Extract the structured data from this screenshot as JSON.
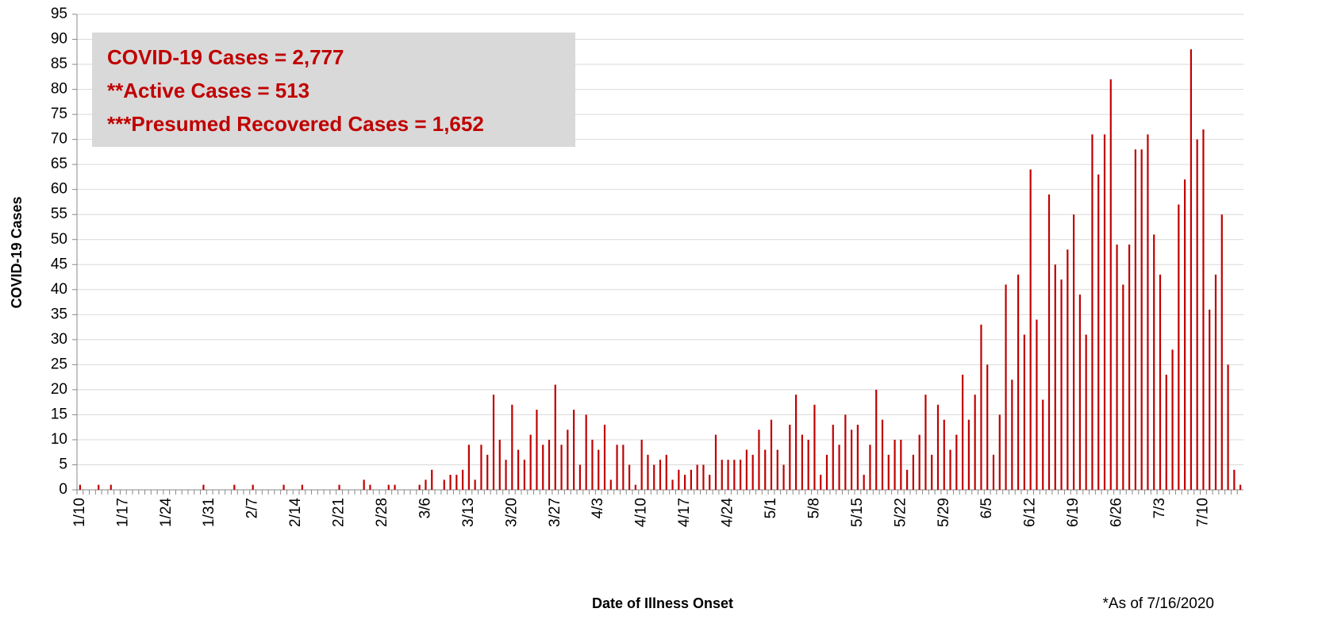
{
  "chart_data": {
    "type": "bar",
    "x_label": "Date of Illness Onset",
    "y_label": "COVID-19 Cases",
    "annotations": [
      "COVID-19 Cases = 2,777",
      "**Active Cases = 513",
      "***Presumed Recovered Cases = 1,652"
    ],
    "footnote": "*As of 7/16/2020",
    "color": "#c00000",
    "grid": true,
    "ylim": [
      0,
      95
    ],
    "yticks": [
      0,
      5,
      10,
      15,
      20,
      25,
      30,
      35,
      40,
      45,
      50,
      55,
      60,
      65,
      70,
      75,
      80,
      85,
      90,
      95
    ],
    "categories": [
      "1/10",
      null,
      null,
      null,
      null,
      null,
      null,
      "1/17",
      null,
      null,
      null,
      null,
      null,
      null,
      "1/24",
      null,
      null,
      null,
      null,
      null,
      null,
      "1/31",
      null,
      null,
      null,
      null,
      null,
      null,
      "2/7",
      null,
      null,
      null,
      null,
      null,
      null,
      "2/14",
      null,
      null,
      null,
      null,
      null,
      null,
      "2/21",
      null,
      null,
      null,
      null,
      null,
      null,
      "2/28",
      null,
      null,
      null,
      null,
      null,
      null,
      "3/6",
      null,
      null,
      null,
      null,
      null,
      null,
      "3/13",
      null,
      null,
      null,
      null,
      null,
      null,
      "3/20",
      null,
      null,
      null,
      null,
      null,
      null,
      "3/27",
      null,
      null,
      null,
      null,
      null,
      null,
      "4/3",
      null,
      null,
      null,
      null,
      null,
      null,
      "4/10",
      null,
      null,
      null,
      null,
      null,
      null,
      "4/17",
      null,
      null,
      null,
      null,
      null,
      null,
      "4/24",
      null,
      null,
      null,
      null,
      null,
      null,
      "5/1",
      null,
      null,
      null,
      null,
      null,
      null,
      "5/8",
      null,
      null,
      null,
      null,
      null,
      null,
      "5/15",
      null,
      null,
      null,
      null,
      null,
      null,
      "5/22",
      null,
      null,
      null,
      null,
      null,
      null,
      "5/29",
      null,
      null,
      null,
      null,
      null,
      null,
      "6/5",
      null,
      null,
      null,
      null,
      null,
      null,
      "6/12",
      null,
      null,
      null,
      null,
      null,
      null,
      "6/19",
      null,
      null,
      null,
      null,
      null,
      null,
      "6/26",
      null,
      null,
      null,
      null,
      null,
      null,
      "7/3",
      null,
      null,
      null,
      null,
      null,
      null,
      "7/10",
      null,
      null,
      null,
      null,
      null,
      null
    ],
    "values": [
      1,
      0,
      0,
      1,
      0,
      1,
      0,
      0,
      0,
      0,
      0,
      0,
      0,
      0,
      0,
      0,
      0,
      0,
      0,
      0,
      1,
      0,
      0,
      0,
      0,
      1,
      0,
      0,
      1,
      0,
      0,
      0,
      0,
      1,
      0,
      0,
      1,
      0,
      0,
      0,
      0,
      0,
      1,
      0,
      0,
      0,
      2,
      1,
      0,
      0,
      1,
      1,
      0,
      0,
      0,
      1,
      2,
      4,
      0,
      2,
      3,
      3,
      4,
      9,
      2,
      9,
      7,
      19,
      10,
      6,
      17,
      8,
      6,
      11,
      16,
      9,
      10,
      21,
      9,
      12,
      16,
      5,
      15,
      10,
      8,
      13,
      2,
      9,
      9,
      5,
      1,
      10,
      7,
      5,
      6,
      7,
      2,
      4,
      3,
      4,
      5,
      5,
      3,
      11,
      6,
      6,
      6,
      6,
      8,
      7,
      12,
      8,
      14,
      8,
      5,
      13,
      19,
      11,
      10,
      17,
      3,
      7,
      13,
      9,
      15,
      12,
      13,
      3,
      9,
      20,
      14,
      7,
      10,
      10,
      4,
      7,
      11,
      19,
      7,
      17,
      14,
      8,
      11,
      23,
      14,
      19,
      33,
      25,
      7,
      15,
      41,
      22,
      43,
      31,
      64,
      34,
      18,
      59,
      45,
      42,
      48,
      55,
      39,
      31,
      71,
      63,
      71,
      82,
      49,
      41,
      49,
      68,
      68,
      71,
      51,
      43,
      23,
      28,
      57,
      62,
      88,
      70,
      72,
      36,
      43,
      55,
      25,
      4,
      1
    ]
  }
}
